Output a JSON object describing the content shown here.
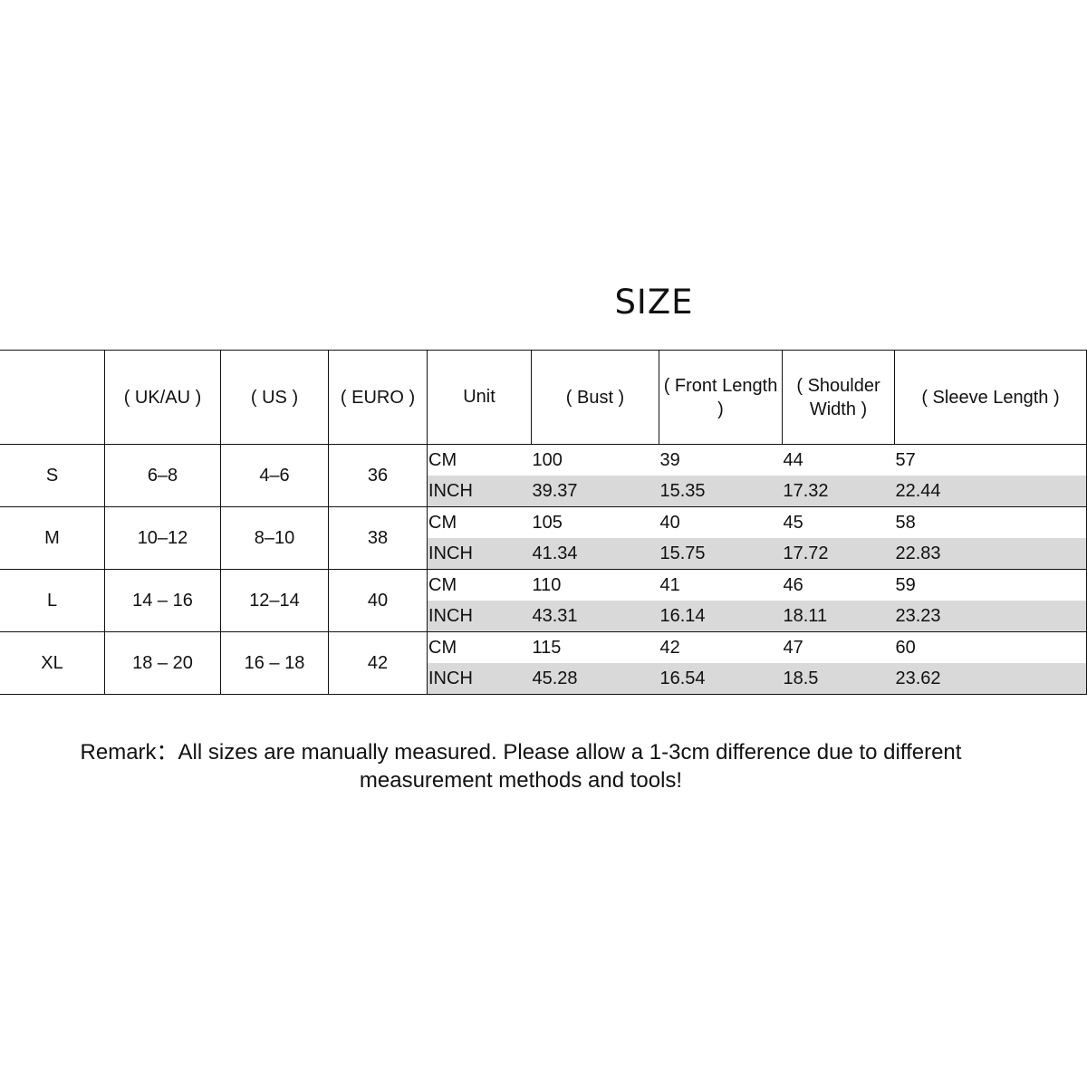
{
  "title": "SIZE",
  "table": {
    "headers": [
      "",
      "( UK/AU )",
      "( US )",
      "( EURO )",
      "Unit",
      "( Bust )",
      "( Front Length )",
      "( Shoulder Width )",
      "( Sleeve Length )"
    ],
    "rows": [
      {
        "size": "S",
        "uk_au": "6–8",
        "us": "4–6",
        "euro": "36",
        "cm": {
          "unit": "CM",
          "bust": "100",
          "front_length": "39",
          "shoulder_width": "44",
          "sleeve_length": "57"
        },
        "inch": {
          "unit": "INCH",
          "bust": "39.37",
          "front_length": "15.35",
          "shoulder_width": "17.32",
          "sleeve_length": "22.44"
        }
      },
      {
        "size": "M",
        "uk_au": "10–12",
        "us": "8–10",
        "euro": "38",
        "cm": {
          "unit": "CM",
          "bust": "105",
          "front_length": "40",
          "shoulder_width": "45",
          "sleeve_length": "58"
        },
        "inch": {
          "unit": "INCH",
          "bust": "41.34",
          "front_length": "15.75",
          "shoulder_width": "17.72",
          "sleeve_length": "22.83"
        }
      },
      {
        "size": "L",
        "uk_au": "14 – 16",
        "us": "12–14",
        "euro": "40",
        "cm": {
          "unit": "CM",
          "bust": "110",
          "front_length": "41",
          "shoulder_width": "46",
          "sleeve_length": "59"
        },
        "inch": {
          "unit": "INCH",
          "bust": "43.31",
          "front_length": "16.14",
          "shoulder_width": "18.11",
          "sleeve_length": "23.23"
        }
      },
      {
        "size": "XL",
        "uk_au": "18 – 20",
        "us": "16 – 18",
        "euro": "42",
        "cm": {
          "unit": "CM",
          "bust": "115",
          "front_length": "42",
          "shoulder_width": "47",
          "sleeve_length": "60"
        },
        "inch": {
          "unit": "INCH",
          "bust": "45.28",
          "front_length": "16.54",
          "shoulder_width": "18.5",
          "sleeve_length": "23.62"
        }
      }
    ]
  },
  "remark": {
    "line1": "Remark：All sizes are manually measured. Please allow a 1-3cm difference due to different",
    "line2": "measurement methods and tools!"
  },
  "colors": {
    "inch_row_bg": "#d9d9d9",
    "border": "#111111"
  }
}
